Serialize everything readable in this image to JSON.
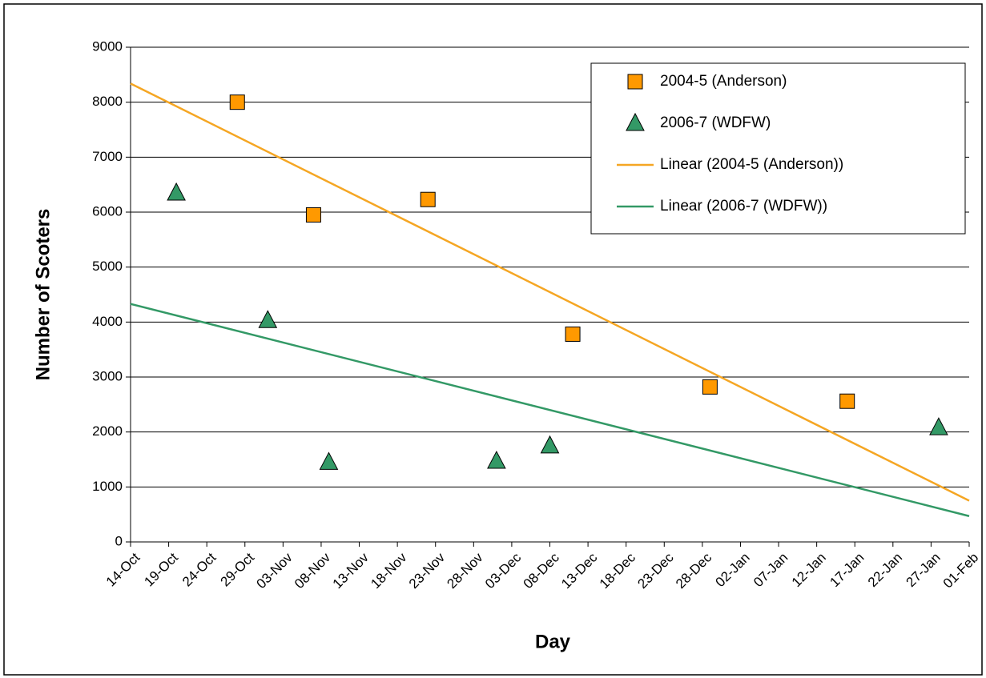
{
  "chart_data": {
    "type": "scatter",
    "x_label": "Day",
    "y_label": "Number of Scoters",
    "xlim": [
      "14-Oct",
      "01-Feb"
    ],
    "xticks": [
      "14-Oct",
      "19-Oct",
      "24-Oct",
      "29-Oct",
      "03-Nov",
      "08-Nov",
      "13-Nov",
      "18-Nov",
      "23-Nov",
      "28-Nov",
      "03-Dec",
      "08-Dec",
      "13-Dec",
      "18-Dec",
      "23-Dec",
      "28-Dec",
      "02-Jan",
      "07-Jan",
      "12-Jan",
      "17-Jan",
      "22-Jan",
      "27-Jan",
      "01-Feb"
    ],
    "ylim": [
      0,
      9000
    ],
    "yticks": [
      0,
      1000,
      2000,
      3000,
      4000,
      5000,
      6000,
      7000,
      8000,
      9000
    ],
    "grid": true,
    "legend": "top-right",
    "series": [
      {
        "name": "2004-5 (Anderson)",
        "color": "#ff9900",
        "marker": "square",
        "x": [
          "28-Oct",
          "07-Nov",
          "22-Nov",
          "11-Dec",
          "29-Dec",
          "16-Jan"
        ],
        "values": [
          8000,
          5950,
          6230,
          3780,
          2820,
          2560
        ]
      },
      {
        "name": "2006-7 (WDFW)",
        "color": "#339966",
        "marker": "triangle",
        "x": [
          "20-Oct",
          "01-Nov",
          "09-Nov",
          "01-Dec",
          "08-Dec",
          "28-Jan"
        ],
        "values": [
          6350,
          4030,
          1450,
          1470,
          1750,
          2080
        ]
      },
      {
        "name": "Linear (2004-5 (Anderson))",
        "color": "#f5a623",
        "marker": "line",
        "x": [
          "14-Oct",
          "01-Feb"
        ],
        "values": [
          8340,
          750
        ]
      },
      {
        "name": "Linear (2006-7 (WDFW))",
        "color": "#339966",
        "marker": "line",
        "x": [
          "14-Oct",
          "01-Feb"
        ],
        "values": [
          4330,
          470
        ]
      }
    ]
  }
}
